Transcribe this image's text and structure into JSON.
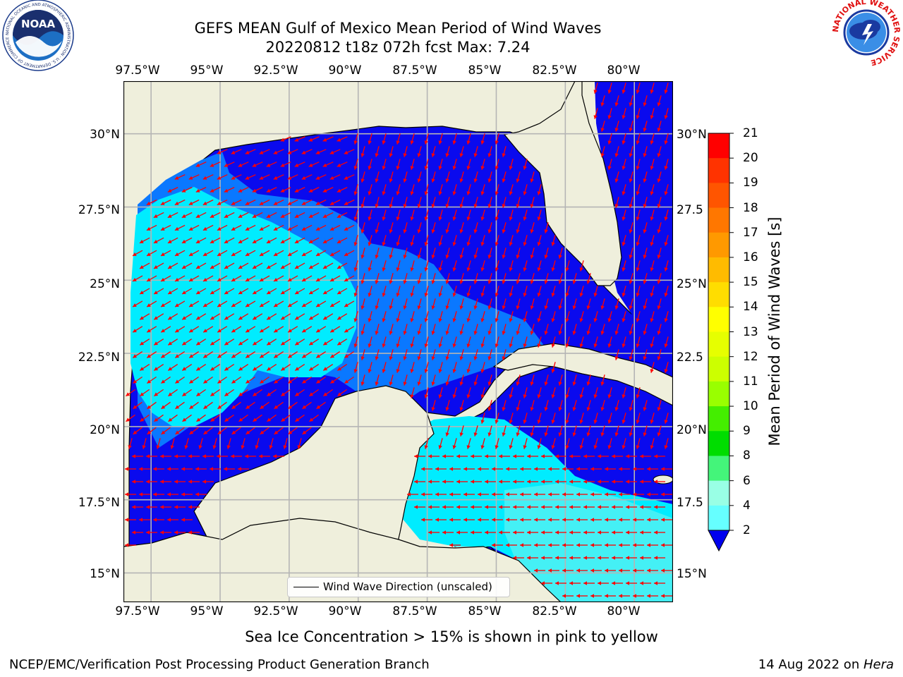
{
  "header": {
    "title_line1": "GEFS MEAN Gulf of Mexico Mean Period of Wind Waves",
    "title_line2": "20220812 t18z 072h fcst   Max: 7.24"
  },
  "axes": {
    "lon_labels": [
      "97.5°W",
      "95°W",
      "92.5°W",
      "90°W",
      "87.5°W",
      "85°W",
      "82.5°W",
      "80°W"
    ],
    "lat_labels_left": [
      "30°N",
      "27.5°N",
      "25°N",
      "22.5°N",
      "20°N",
      "17.5°N",
      "15°N"
    ],
    "lat_labels_right": [
      "30°N",
      "27.5",
      "25°N",
      "22.5",
      "20°N",
      "17.5",
      "15°N"
    ]
  },
  "legend": {
    "label": "Wind Wave Direction (unscaled)"
  },
  "colorbar": {
    "label": "Mean Period of Wind Waves [s]",
    "ticks": [
      "21",
      "20",
      "19",
      "18",
      "17",
      "16",
      "15",
      "14",
      "13",
      "12",
      "11",
      "10",
      "9",
      "8",
      "6",
      "4",
      "2"
    ],
    "colors": [
      "#ff0000",
      "#ff3300",
      "#ff5500",
      "#ff7700",
      "#ff9900",
      "#ffbb00",
      "#ffdd00",
      "#ffff00",
      "#e6ff00",
      "#ccff00",
      "#99ff00",
      "#44ee00",
      "#00dd00",
      "#44f57a",
      "#99ffe5",
      "#66ffff",
      "#33f5ff",
      "#00ecff",
      "#0077ff",
      "#0000ee"
    ]
  },
  "map": {
    "extent": {
      "lon_min": -98.5,
      "lon_max": -78.6,
      "lat_min": 14.0,
      "lat_max": 31.8
    },
    "colors": {
      "land": "#efefdc",
      "ocean_deep": "#0a0aee",
      "ocean_mid": "#0a78ff",
      "ocean_light": "#00ecff",
      "ocean_pale": "#44f0f5",
      "arrow": "#ff0000",
      "grid": "#b5b5b5"
    }
  },
  "footer": {
    "note": "Sea Ice Concentration > 15% is shown in pink to yellow",
    "credit": "NCEP/EMC/Verification Post Processing Product Generation Branch",
    "date": "14 Aug 2022 on ",
    "host": "Hera"
  },
  "logos": {
    "noaa": {
      "text": "NOAA",
      "ring": "NATIONAL OCEANIC AND ATMOSPHERIC ADMINISTRATION · U.S. DEPARTMENT OF COMMERCE"
    },
    "nws": {
      "ring": "NATIONAL WEATHER SERVICE"
    }
  }
}
